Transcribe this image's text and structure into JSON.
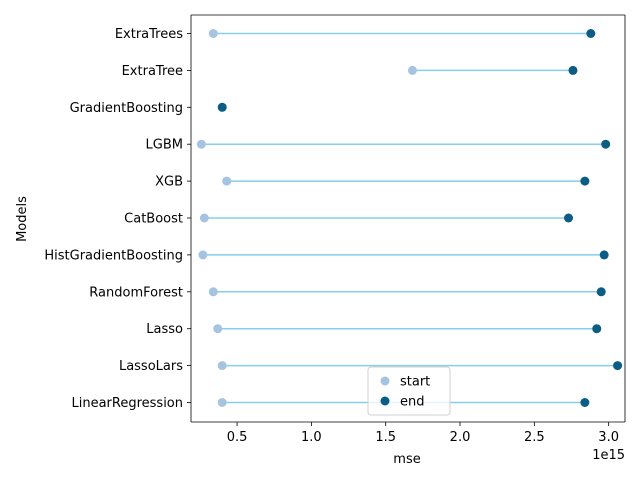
{
  "chart_data": {
    "type": "dumbbell",
    "xlabel": "mse",
    "ylabel": "Models",
    "x_offset_label": "1e15",
    "x_scale_factor": 1000000000000000.0,
    "xlim": [
      190000000000000.0,
      3110000000000000.0
    ],
    "x_ticks": [
      {
        "value": 500000000000000.0,
        "label": "0.5"
      },
      {
        "value": 1000000000000000.0,
        "label": "1.0"
      },
      {
        "value": 1500000000000000.0,
        "label": "1.5"
      },
      {
        "value": 2000000000000000.0,
        "label": "2.0"
      },
      {
        "value": 2500000000000000.0,
        "label": "2.5"
      },
      {
        "value": 3000000000000000.0,
        "label": "3.0"
      }
    ],
    "categories": [
      "ExtraTrees",
      "ExtraTree",
      "GradientBoosting",
      "LGBM",
      "XGB",
      "CatBoost",
      "HistGradientBoosting",
      "RandomForest",
      "Lasso",
      "LassoLars",
      "LinearRegression"
    ],
    "series": [
      {
        "name": "start",
        "color": "#a6c4e0",
        "values": [
          340000000000000.0,
          1680000000000000.0,
          400000000000000.0,
          260000000000000.0,
          430000000000000.0,
          280000000000000.0,
          270000000000000.0,
          340000000000000.0,
          370000000000000.0,
          400000000000000.0,
          400000000000000.0
        ]
      },
      {
        "name": "end",
        "color": "#0b5d86",
        "values": [
          2880000000000000.0,
          2760000000000000.0,
          400000000000000.0,
          2980000000000000.0,
          2840000000000000.0,
          2730000000000000.0,
          2970000000000000.0,
          2950000000000000.0,
          2920000000000000.0,
          3060000000000000.0,
          2840000000000000.0
        ]
      }
    ],
    "connector_color": "#87ceeb",
    "legend": {
      "position": "lower-center"
    }
  }
}
